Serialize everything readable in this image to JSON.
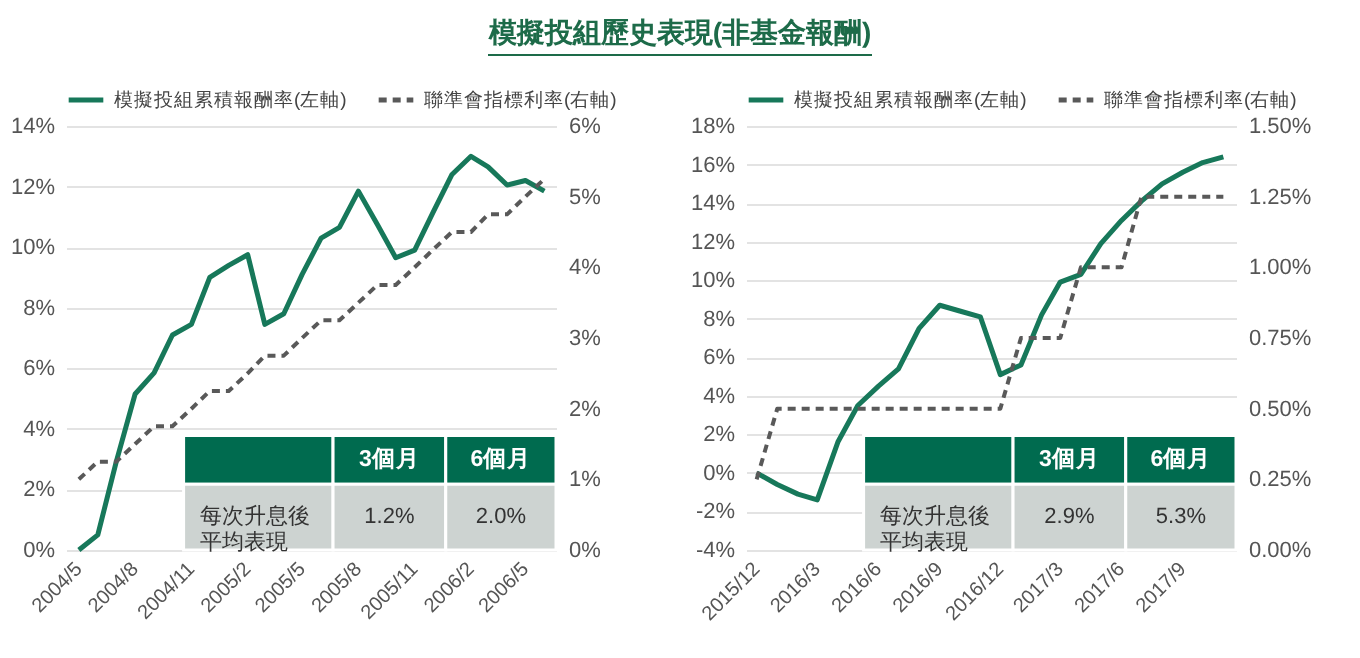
{
  "chart_data": [
    {
      "type": "line",
      "title": "模擬投組歷史表現(非基金報酬)",
      "x": [
        "2004-05",
        "2004-06",
        "2004-07",
        "2004-08",
        "2004-09",
        "2004-10",
        "2004-11",
        "2004-12",
        "2005-01",
        "2005-02",
        "2005-03",
        "2005-04",
        "2005-05",
        "2005-06",
        "2005-07",
        "2005-08",
        "2005-09",
        "2005-10",
        "2005-11",
        "2005-12",
        "2006-01",
        "2006-02",
        "2006-03",
        "2006-04",
        "2006-05",
        "2006-06"
      ],
      "series": [
        {
          "name": "模擬投組累積報酬率(左軸)",
          "color": "#17785a",
          "line_style": "solid",
          "values": [
            0,
            0.5,
            2.9,
            5.15,
            5.85,
            7.1,
            7.45,
            9.0,
            9.4,
            9.75,
            7.45,
            7.8,
            9.1,
            10.3,
            10.65,
            11.85,
            10.75,
            9.65,
            9.9,
            11.15,
            12.4,
            13.0,
            12.65,
            12.05,
            12.2,
            11.85
          ]
        },
        {
          "name": "聯準會指標利率(右軸)",
          "color": "#595959",
          "line_style": "dashed",
          "axis": "y2",
          "values": [
            1.0,
            1.25,
            1.25,
            1.5,
            1.75,
            1.75,
            2.0,
            2.25,
            2.25,
            2.5,
            2.75,
            2.75,
            3.0,
            3.25,
            3.25,
            3.5,
            3.75,
            3.75,
            4.0,
            4.25,
            4.5,
            4.5,
            4.75,
            4.75,
            5.0,
            5.25
          ]
        }
      ],
      "xlim": [
        "2004-04-10",
        "2006-06-20"
      ],
      "xticks": [
        {
          "value": "2004-05",
          "label": "2004/5"
        },
        {
          "value": "2004-08",
          "label": "2004/8"
        },
        {
          "value": "2004-11",
          "label": "2004/11"
        },
        {
          "value": "2005-02",
          "label": "2005/2"
        },
        {
          "value": "2005-05",
          "label": "2005/5"
        },
        {
          "value": "2005-08",
          "label": "2005/8"
        },
        {
          "value": "2005-11",
          "label": "2005/11"
        },
        {
          "value": "2006-02",
          "label": "2006/2"
        },
        {
          "value": "2006-05",
          "label": "2006/5"
        }
      ],
      "ylim": [
        0,
        14
      ],
      "yticks": [
        {
          "value": 0,
          "label": "0%"
        },
        {
          "value": 2,
          "label": "2%"
        },
        {
          "value": 4,
          "label": "4%"
        },
        {
          "value": 6,
          "label": "6%"
        },
        {
          "value": 8,
          "label": "8%"
        },
        {
          "value": 10,
          "label": "10%"
        },
        {
          "value": 12,
          "label": "12%"
        },
        {
          "value": 14,
          "label": "14%"
        }
      ],
      "y2lim": [
        0,
        6
      ],
      "y2ticks": [
        {
          "value": 0,
          "label": "0%"
        },
        {
          "value": 1,
          "label": "1%"
        },
        {
          "value": 2,
          "label": "2%"
        },
        {
          "value": 3,
          "label": "3%"
        },
        {
          "value": 4,
          "label": "4%"
        },
        {
          "value": 5,
          "label": "5%"
        },
        {
          "value": 6,
          "label": "6%"
        }
      ],
      "annotations": [
        "3個月",
        "6個月",
        "每次升息後平均表現",
        "1.2%",
        "2.0%"
      ],
      "grid": "y",
      "legend": "top"
    },
    {
      "type": "line",
      "x": [
        "2015-12",
        "2016-01",
        "2016-02",
        "2016-03",
        "2016-04",
        "2016-05",
        "2016-06",
        "2016-07",
        "2016-08",
        "2016-09",
        "2016-10",
        "2016-11",
        "2016-12",
        "2017-01",
        "2017-02",
        "2017-03",
        "2017-04",
        "2017-05",
        "2017-06",
        "2017-07",
        "2017-08",
        "2017-09",
        "2017-10",
        "2017-11"
      ],
      "series": [
        {
          "name": "模擬投組累積報酬率(左軸)",
          "color": "#17785a",
          "line_style": "solid",
          "values": [
            0,
            -0.6,
            -1.1,
            -1.4,
            1.6,
            3.5,
            4.5,
            5.4,
            7.5,
            8.7,
            8.4,
            8.1,
            5.1,
            5.6,
            8.2,
            9.9,
            10.3,
            11.9,
            13.1,
            14.1,
            15.0,
            15.6,
            16.1,
            16.4
          ]
        },
        {
          "name": "聯準會指標利率(右軸)",
          "color": "#595959",
          "line_style": "dashed",
          "axis": "y2",
          "values": [
            0.25,
            0.5,
            0.5,
            0.5,
            0.5,
            0.5,
            0.5,
            0.5,
            0.5,
            0.5,
            0.5,
            0.5,
            0.5,
            0.75,
            0.75,
            0.75,
            1.0,
            1.0,
            1.0,
            1.25,
            1.25,
            1.25,
            1.25,
            1.25
          ]
        }
      ],
      "xlim": [
        "2015-11-15",
        "2017-11-20"
      ],
      "xticks": [
        {
          "value": "2015-12",
          "label": "2015/12"
        },
        {
          "value": "2016-03",
          "label": "2016/3"
        },
        {
          "value": "2016-06",
          "label": "2016/6"
        },
        {
          "value": "2016-09",
          "label": "2016/9"
        },
        {
          "value": "2016-12",
          "label": "2016/12"
        },
        {
          "value": "2017-03",
          "label": "2017/3"
        },
        {
          "value": "2017-06",
          "label": "2017/6"
        },
        {
          "value": "2017-09",
          "label": "2017/9"
        }
      ],
      "ylim": [
        -4,
        18
      ],
      "yticks": [
        {
          "value": -4,
          "label": "-4%"
        },
        {
          "value": -2,
          "label": "-2%"
        },
        {
          "value": 0,
          "label": "0%"
        },
        {
          "value": 2,
          "label": "2%"
        },
        {
          "value": 4,
          "label": "4%"
        },
        {
          "value": 6,
          "label": "6%"
        },
        {
          "value": 8,
          "label": "8%"
        },
        {
          "value": 10,
          "label": "10%"
        },
        {
          "value": 12,
          "label": "12%"
        },
        {
          "value": 14,
          "label": "14%"
        },
        {
          "value": 16,
          "label": "16%"
        },
        {
          "value": 18,
          "label": "18%"
        }
      ],
      "y2lim": [
        0,
        1.5
      ],
      "y2ticks": [
        {
          "value": 0,
          "label": "0.00%"
        },
        {
          "value": 0.25,
          "label": "0.25%"
        },
        {
          "value": 0.5,
          "label": "0.50%"
        },
        {
          "value": 0.75,
          "label": "0.75%"
        },
        {
          "value": 1.0,
          "label": "1.00%"
        },
        {
          "value": 1.25,
          "label": "1.25%"
        },
        {
          "value": 1.5,
          "label": "1.50%"
        }
      ],
      "annotations": [
        "3個月",
        "6個月",
        "每次升息後平均表現",
        "2.9%",
        "5.3%"
      ],
      "grid": "y",
      "legend": "top"
    }
  ]
}
